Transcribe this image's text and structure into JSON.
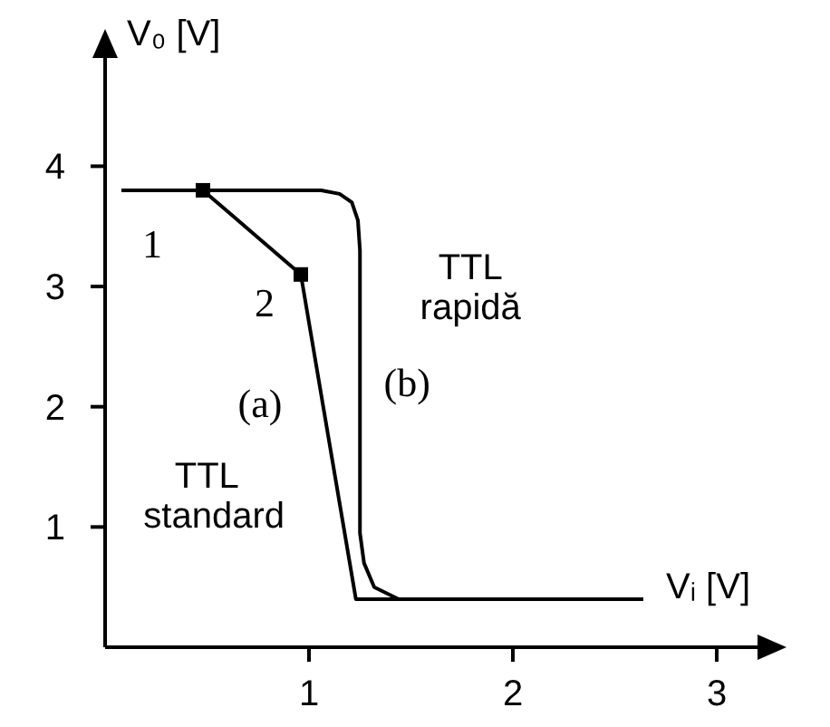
{
  "chart_data": {
    "type": "line",
    "xlabel": "Vᵢ [V]",
    "ylabel": "V₀ [V]",
    "xlim": [
      0,
      3.2
    ],
    "ylim": [
      0,
      4.9
    ],
    "xticks": [
      1,
      2,
      3
    ],
    "yticks": [
      1,
      2,
      3,
      4
    ],
    "series": [
      {
        "color": "#000000",
        "marker": "none",
        "x": [
          0.08,
          0.48,
          0.96,
          1.23,
          2.64
        ],
        "values": [
          3.8,
          3.8,
          3.1,
          0.4,
          0.4
        ]
      },
      {
        "color": "#000000",
        "marker": "none",
        "x": [
          0.08,
          1.06,
          1.15,
          1.21,
          1.24,
          1.25,
          1.25,
          1.27,
          1.32,
          1.44,
          2.64
        ],
        "values": [
          3.8,
          3.8,
          3.77,
          3.7,
          3.55,
          3.3,
          0.95,
          0.7,
          0.5,
          0.4,
          0.4
        ]
      },
      {
        "type": "scatter",
        "color": "#000000",
        "marker": "square",
        "x": [
          0.48,
          0.96
        ],
        "values": [
          3.8,
          3.1
        ]
      }
    ],
    "annotations": [
      {
        "text": "1",
        "x": 0.48,
        "y": 3.8
      },
      {
        "text": "2",
        "x": 0.96,
        "y": 3.1
      },
      {
        "text": "(a)",
        "x": 1.08,
        "y": 1.9
      },
      {
        "text": "(b)",
        "x": 1.25,
        "y": 2.1
      },
      "TTL standard",
      "TTL rapidă"
    ]
  }
}
